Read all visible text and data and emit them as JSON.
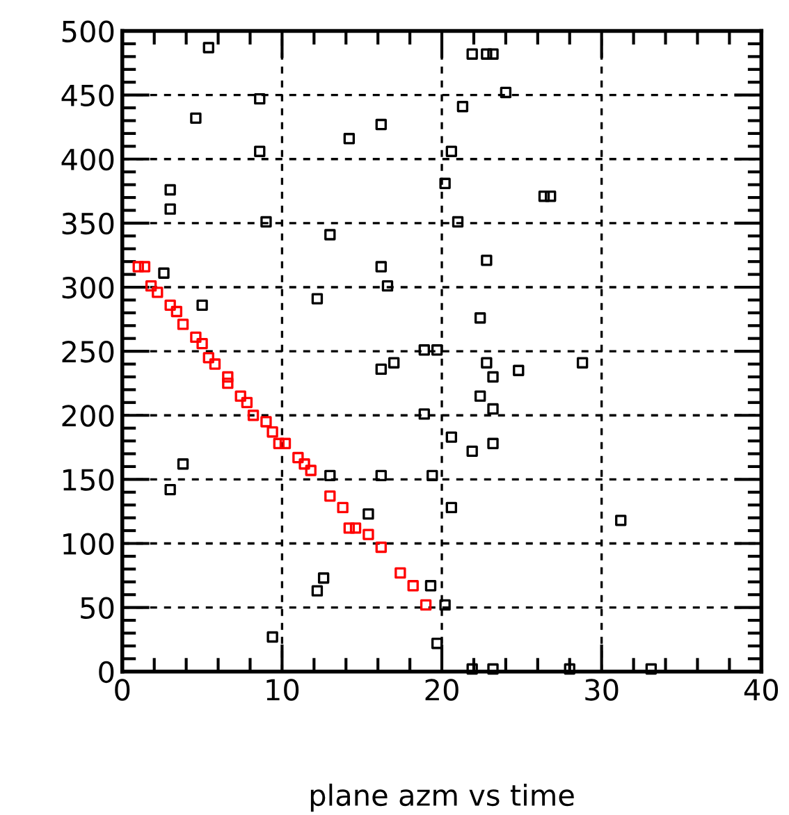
{
  "chart_data": {
    "type": "scatter",
    "xlabel": "plane azm vs time",
    "xlim": [
      0,
      40
    ],
    "ylim": [
      0,
      500
    ],
    "xticks": [
      0,
      10,
      20,
      30,
      40
    ],
    "yticks": [
      0,
      50,
      100,
      150,
      200,
      250,
      300,
      350,
      400,
      450,
      500
    ],
    "grid": true,
    "marker": "square",
    "series": [
      {
        "color": "#000000",
        "x": [
          5.4,
          8.6,
          4.6,
          16.2,
          14.2,
          8.6,
          3.0,
          3.0,
          9.0,
          13.0,
          2.6,
          16.2,
          16.6,
          5.0,
          12.2,
          18.9,
          19.7,
          16.2,
          17.0,
          21.9,
          22.8,
          23.2,
          24.0,
          21.3,
          20.6,
          20.2,
          26.4,
          26.8,
          21.0,
          22.8,
          22.4,
          22.8,
          24.8,
          28.8,
          23.2,
          18.9,
          3.8,
          3.0,
          13.0,
          16.2,
          19.4,
          15.4,
          12.6,
          12.2,
          19.3,
          9.4,
          19.7,
          22.4,
          23.2,
          20.6,
          21.9,
          23.2,
          20.6,
          31.2,
          20.2,
          21.9,
          23.2,
          28.0,
          33.1
        ],
        "values": [
          487,
          447,
          432,
          427,
          416,
          406,
          376,
          361,
          351,
          341,
          311,
          316,
          301,
          286,
          291,
          251,
          251,
          236,
          241,
          482,
          482,
          482,
          452,
          441,
          406,
          381,
          371,
          371,
          351,
          321,
          276,
          241,
          235,
          241,
          230,
          201,
          162,
          142,
          153,
          153,
          153,
          123,
          73,
          63,
          67,
          27,
          22,
          215,
          205,
          183,
          172,
          178,
          128,
          118,
          52,
          2,
          2,
          2,
          2
        ]
      },
      {
        "color": "#ff0000",
        "x": [
          1.0,
          1.4,
          1.8,
          2.2,
          3.0,
          3.4,
          3.8,
          4.6,
          5.0,
          5.4,
          5.8,
          6.6,
          6.6,
          7.4,
          7.8,
          8.2,
          9.0,
          9.4,
          9.8,
          10.2,
          11.0,
          11.4,
          11.8,
          13.0,
          13.8,
          14.2,
          14.6,
          15.4,
          16.2,
          17.4,
          18.2,
          19.0
        ],
        "values": [
          316,
          316,
          301,
          296,
          286,
          281,
          271,
          261,
          256,
          245,
          240,
          230,
          225,
          215,
          210,
          200,
          195,
          187,
          178,
          178,
          167,
          162,
          157,
          137,
          128,
          112,
          112,
          107,
          97,
          77,
          67,
          52
        ]
      }
    ]
  }
}
